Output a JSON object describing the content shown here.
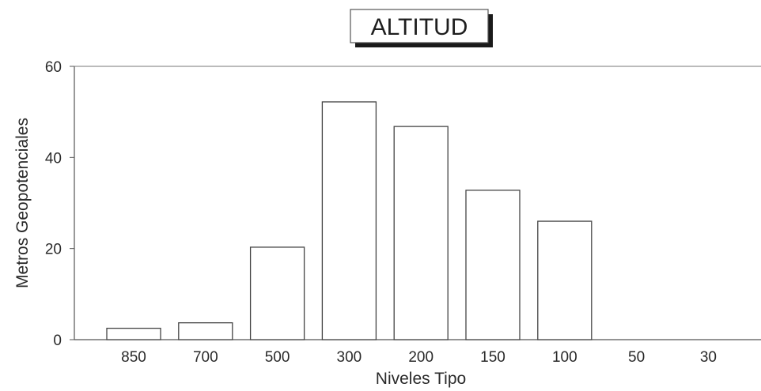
{
  "chart_data": {
    "type": "bar",
    "title": "ALTITUD",
    "xlabel": "Niveles Tipo",
    "ylabel": "Metros Geopotenciales",
    "categories": [
      "850",
      "700",
      "500",
      "300",
      "200",
      "150",
      "100",
      "50",
      "30"
    ],
    "values": [
      2.5,
      3.7,
      20.3,
      52.2,
      46.8,
      32.8,
      26.0,
      0,
      0
    ],
    "ylim": [
      0,
      60
    ],
    "yticks": [
      0,
      20,
      40,
      60
    ],
    "grid": false,
    "legend": "none",
    "colors": {
      "bar_fill": "#ffffff",
      "bar_stroke": "#444444",
      "axis": "#555555",
      "title_shadow": "#1a1a1a"
    }
  }
}
